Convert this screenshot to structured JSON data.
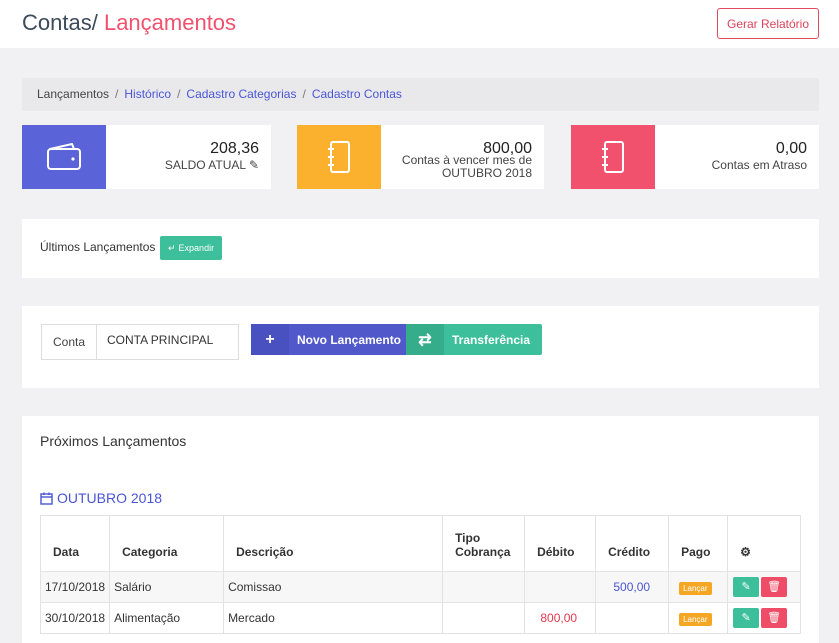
{
  "header": {
    "title_prefix": "Contas/",
    "title_accent": "Lançamentos",
    "report_button": "Gerar Relatório"
  },
  "breadcrumb": {
    "current": "Lançamentos",
    "links": [
      "Histórico",
      "Cadastro Categorias",
      "Cadastro Contas"
    ]
  },
  "cards": [
    {
      "value": "208,36",
      "label": "SALDO ATUAL",
      "color": "#5a63d8",
      "icon": "wallet-icon"
    },
    {
      "value": "800,00",
      "label_line1": "Contas à vencer mes de",
      "label_line2": "OUTUBRO 2018",
      "color": "#fbb12d",
      "icon": "notebook-icon"
    },
    {
      "value": "0,00",
      "label": "Contas em Atraso",
      "color": "#f2516e",
      "icon": "notebook-icon"
    }
  ],
  "ultimos": {
    "title": "Últimos Lançamentos",
    "expand_button": "Expandir"
  },
  "account": {
    "label": "Conta",
    "value": "CONTA PRINCIPAL",
    "new_button": "Novo Lançamento",
    "transfer_button": "Transferência"
  },
  "proximos": {
    "title": "Próximos Lançamentos",
    "month": "OUTUBRO 2018",
    "columns": [
      "Data",
      "Categoria",
      "Descrição",
      "Tipo Cobrança",
      "Débito",
      "Crédito",
      "Pago"
    ],
    "rows": [
      {
        "data": "17/10/2018",
        "categoria": "Salário",
        "descricao": "Comissao",
        "tipo": "",
        "debito": "",
        "credito": "500,00",
        "pago": "Lançar"
      },
      {
        "data": "30/10/2018",
        "categoria": "Alimentação",
        "descricao": "Mercado",
        "tipo": "",
        "debito": "800,00",
        "credito": "",
        "pago": "Lançar"
      }
    ]
  }
}
